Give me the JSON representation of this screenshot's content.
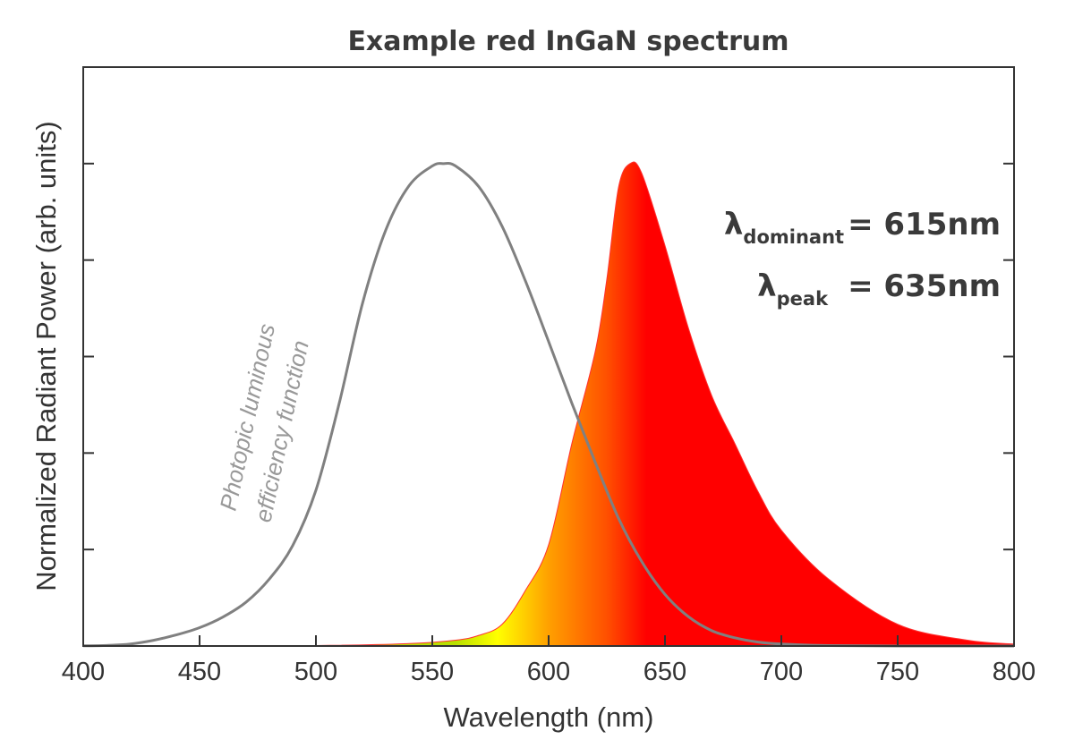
{
  "chart_data": {
    "type": "area",
    "title": "Example red InGaN spectrum",
    "xlabel": "Wavelength (nm)",
    "ylabel": "Normalized Radiant Power (arb. units)",
    "xlim": [
      400,
      800
    ],
    "ylim": [
      0,
      1.2
    ],
    "xticks": [
      400,
      450,
      500,
      550,
      600,
      650,
      700,
      750,
      800
    ],
    "yticks": [
      0,
      0.2,
      0.4,
      0.6,
      0.8,
      1.0
    ],
    "y_tick_labels_shown": false,
    "grid": false,
    "series": [
      {
        "name": "Photopic luminous efficiency function",
        "kind": "line",
        "color": "#808080",
        "x": [
          400,
          410,
          420,
          430,
          440,
          450,
          460,
          470,
          480,
          490,
          500,
          510,
          520,
          530,
          540,
          550,
          555,
          560,
          570,
          580,
          590,
          600,
          610,
          620,
          630,
          640,
          650,
          660,
          670,
          680,
          690,
          700,
          720,
          750,
          800
        ],
        "y": [
          0.0004,
          0.0012,
          0.004,
          0.0116,
          0.023,
          0.038,
          0.06,
          0.091,
          0.139,
          0.208,
          0.323,
          0.503,
          0.71,
          0.862,
          0.954,
          0.995,
          1.0,
          0.995,
          0.952,
          0.87,
          0.757,
          0.631,
          0.503,
          0.381,
          0.265,
          0.175,
          0.107,
          0.061,
          0.032,
          0.017,
          0.0082,
          0.0041,
          0.001,
          0.0001,
          0
        ]
      },
      {
        "name": "",
        "kind": "filled-area",
        "gradient": [
          {
            "x": 560,
            "color": "#b8e000"
          },
          {
            "x": 578,
            "color": "#ffff00"
          },
          {
            "x": 600,
            "color": "#ffa000"
          },
          {
            "x": 625,
            "color": "#ff5000"
          },
          {
            "x": 642,
            "color": "#ff0000"
          }
        ],
        "x": [
          400,
          500,
          540,
          560,
          570,
          580,
          590,
          600,
          610,
          620,
          625,
          630,
          635,
          640,
          650,
          660,
          670,
          680,
          690,
          700,
          720,
          750,
          780,
          800
        ],
        "y": [
          0,
          0.001,
          0.005,
          0.012,
          0.022,
          0.045,
          0.115,
          0.21,
          0.42,
          0.61,
          0.76,
          0.95,
          1.0,
          0.98,
          0.83,
          0.66,
          0.52,
          0.42,
          0.32,
          0.24,
          0.14,
          0.045,
          0.012,
          0.004
        ]
      }
    ],
    "annotations": {
      "dominant": {
        "symbol": "λ",
        "subscript": "dominant",
        "value": "= 615nm"
      },
      "peak": {
        "symbol": "λ",
        "subscript": "peak",
        "value": "= 635nm"
      },
      "curve_label_line1": "Photopic luminous",
      "curve_label_line2": "efficiency function"
    }
  }
}
